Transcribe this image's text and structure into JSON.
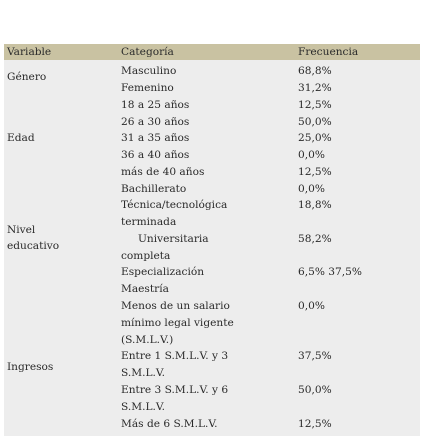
{
  "headers": {
    "variable": "Variable",
    "categoria": "Categoría",
    "frecuencia": "Frecuencia"
  },
  "variables": {
    "genero": "Género",
    "edad": "Edad",
    "nivel_1": "Nivel",
    "nivel_2": "educativo",
    "ingresos": "Ingresos"
  },
  "rows": [
    {
      "cat": "Masculino",
      "freq": "68,8%"
    },
    {
      "cat": "Femenino",
      "freq": "31,2%"
    },
    {
      "cat": "18 a 25 años",
      "freq": "12,5%"
    },
    {
      "cat": "26 a 30 años",
      "freq": "50,0%"
    },
    {
      "cat": "31 a 35 años",
      "freq": "25,0%"
    },
    {
      "cat": "36 a 40 años",
      "freq": "0,0%"
    },
    {
      "cat": "más de 40 años",
      "freq": "12,5%"
    },
    {
      "cat": "Bachillerato",
      "freq": "0,0%"
    },
    {
      "cat": "Técnica/tecnológica",
      "freq": "18,8%"
    },
    {
      "cat": "terminada",
      "freq": ""
    },
    {
      "cat": "Universitaria",
      "freq": "58,2%"
    },
    {
      "cat": "completa",
      "freq": ""
    },
    {
      "cat": "Especialización",
      "freq": "6,5% 37,5%"
    },
    {
      "cat": "Maestría",
      "freq": ""
    },
    {
      "cat": "Menos de un salario",
      "freq": "0,0%"
    },
    {
      "cat": "mínimo legal vigente",
      "freq": ""
    },
    {
      "cat": "(S.M.L.V.)",
      "freq": ""
    },
    {
      "cat": "Entre 1 S.M.L.V. y 3",
      "freq": "37,5%"
    },
    {
      "cat": "S.M.L.V.",
      "freq": ""
    },
    {
      "cat": "Entre 3 S.M.L.V. y 6",
      "freq": "50,0%"
    },
    {
      "cat": "S.M.L.V.",
      "freq": ""
    },
    {
      "cat": "Más de 6 S.M.L.V.",
      "freq": "12,5%"
    }
  ]
}
